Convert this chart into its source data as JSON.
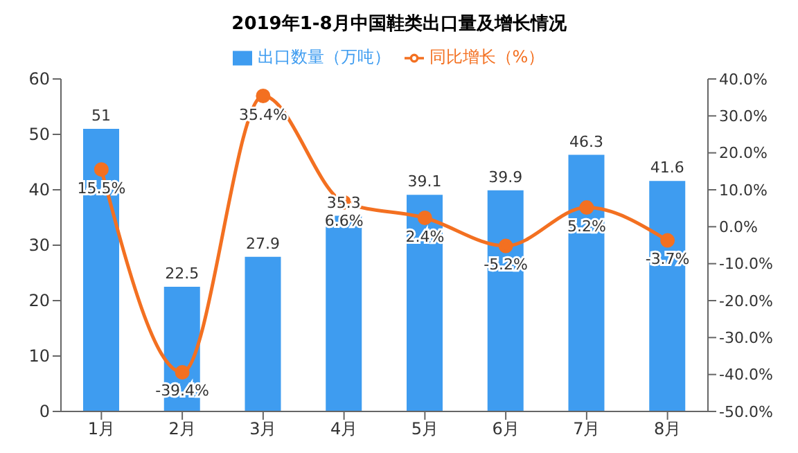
{
  "chart_data": {
    "type": "bar",
    "title": "2019年1-8月中国鞋类出口量及增长情况",
    "categories": [
      "1月",
      "2月",
      "3月",
      "4月",
      "5月",
      "6月",
      "7月",
      "8月"
    ],
    "series": [
      {
        "name": "出口数量（万吨）",
        "color": "#3e9cf0",
        "values": [
          51,
          22.5,
          27.9,
          35.3,
          39.1,
          39.9,
          46.3,
          41.6
        ],
        "value_labels": [
          "51",
          "22.5",
          "27.9",
          "35.3",
          "39.1",
          "39.9",
          "46.3",
          "41.6"
        ]
      },
      {
        "name": "同比增长（%）",
        "type": "line",
        "axis": "y2",
        "color": "#f37021",
        "values": [
          15.5,
          -39.4,
          35.4,
          6.6,
          2.4,
          -5.2,
          5.2,
          -3.7
        ],
        "value_labels": [
          "15.5%",
          "-39.4%",
          "35.4%",
          "6.6%",
          "2.4%",
          "-5.2%",
          "5.2%",
          "-3.7%"
        ]
      }
    ],
    "ylim": [
      0,
      60
    ],
    "yticks": [
      0,
      10,
      20,
      30,
      40,
      50,
      60
    ],
    "y2lim": [
      -50,
      40
    ],
    "y2ticks": [
      {
        "value": -50,
        "label": "-50.0%"
      },
      {
        "value": -40,
        "label": "-40.0%"
      },
      {
        "value": -30,
        "label": "-30.0%"
      },
      {
        "value": -20,
        "label": "-20.0%"
      },
      {
        "value": -10,
        "label": "-10.0%"
      },
      {
        "value": 0,
        "label": "0.0%"
      },
      {
        "value": 10,
        "label": "10.0%"
      },
      {
        "value": 20,
        "label": "20.0%"
      },
      {
        "value": 30,
        "label": "30.0%"
      },
      {
        "value": 40,
        "label": "40.0%"
      }
    ],
    "legend": "top",
    "marker": "circle",
    "line_style": "solid",
    "grid": false
  }
}
